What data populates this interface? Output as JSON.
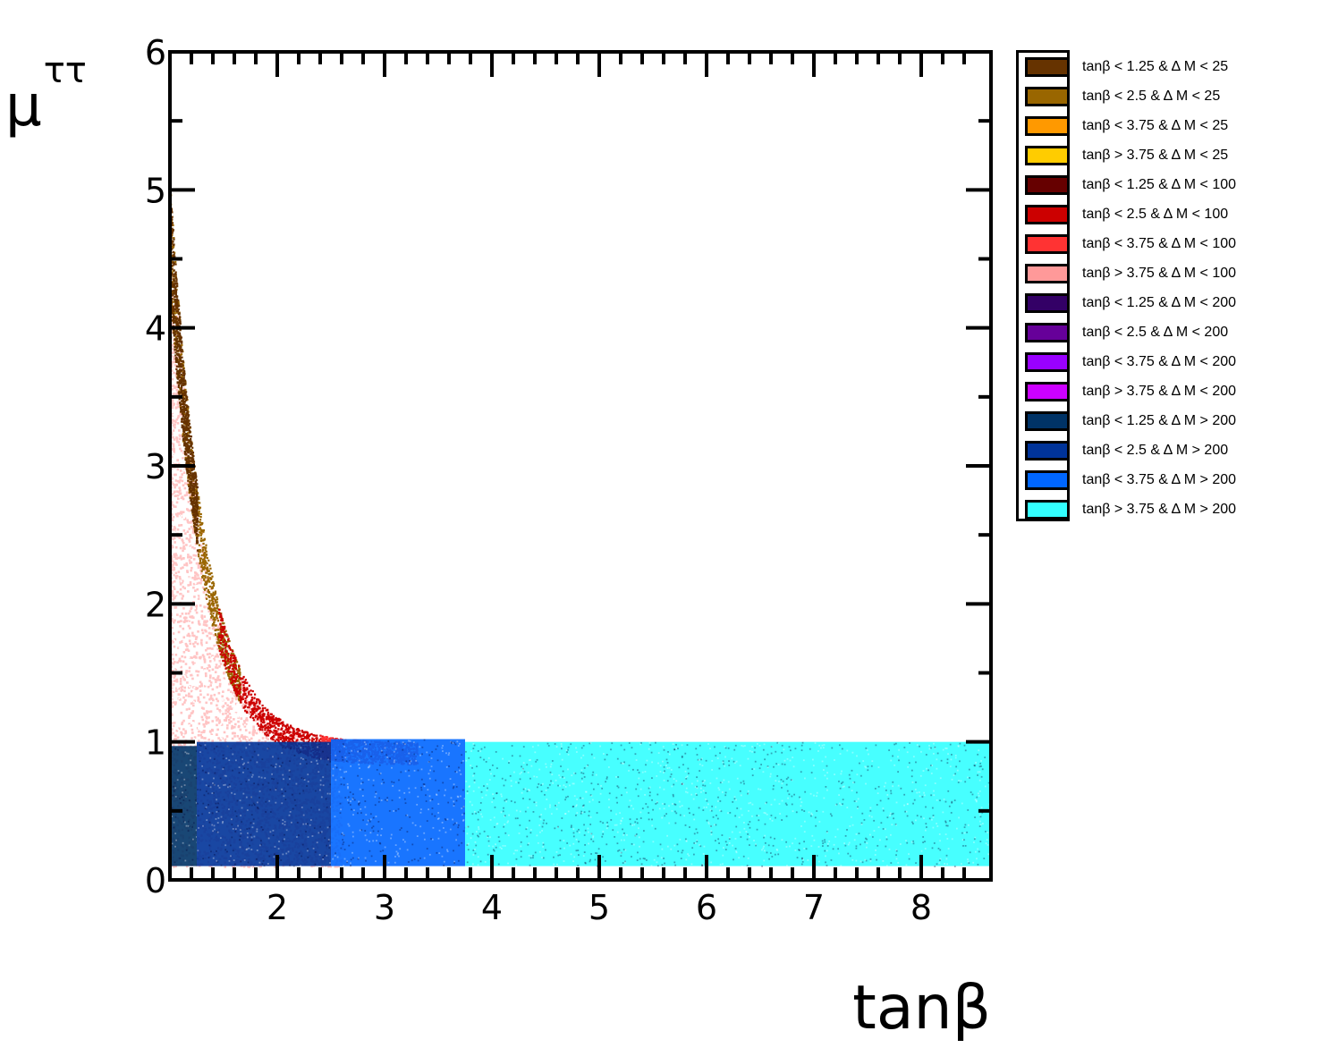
{
  "chart_data": {
    "type": "scatter",
    "title": "",
    "xlabel": "tanβ",
    "ylabel": "μ",
    "ylabel_subscript": "ττ",
    "xlim": [
      1.0,
      8.65
    ],
    "ylim": [
      0,
      6
    ],
    "x_ticks": [
      "2",
      "3",
      "4",
      "5",
      "6",
      "7",
      "8"
    ],
    "y_ticks": [
      "0",
      "1",
      "2",
      "3",
      "4",
      "5",
      "6"
    ],
    "legend_position": "right",
    "series": [
      {
        "name": "tanβ < 1.25 & Δ M < 25",
        "color": "#663300"
      },
      {
        "name": "tanβ < 2.5 & Δ M < 25",
        "color": "#996600"
      },
      {
        "name": "tanβ < 3.75 & Δ M < 25",
        "color": "#ff9900"
      },
      {
        "name": "tanβ > 3.75 & Δ M < 25",
        "color": "#ffcc00"
      },
      {
        "name": "tanβ < 1.25 & Δ M < 100",
        "color": "#660000"
      },
      {
        "name": "tanβ < 2.5 & Δ M < 100",
        "color": "#cc0000"
      },
      {
        "name": "tanβ < 3.75 & Δ M < 100",
        "color": "#ff3333"
      },
      {
        "name": "tanβ > 3.75 & Δ M < 100",
        "color": "#ff9999"
      },
      {
        "name": "tanβ < 1.25 & Δ M < 200",
        "color": "#330066"
      },
      {
        "name": "tanβ < 2.5 & Δ M < 200",
        "color": "#660099"
      },
      {
        "name": "tanβ < 3.75 & Δ M < 200",
        "color": "#9900ff"
      },
      {
        "name": "tanβ > 3.75 & Δ M < 200",
        "color": "#cc00ff"
      },
      {
        "name": "tanβ < 1.25 & Δ M > 200",
        "color": "#003366"
      },
      {
        "name": "tanβ < 2.5 & Δ M > 200",
        "color": "#003399"
      },
      {
        "name": "tanβ < 3.75 & Δ M > 200",
        "color": "#0066ff"
      },
      {
        "name": "tanβ > 3.75 & Δ M > 200",
        "color": "#33ffff"
      }
    ],
    "regions": [
      {
        "series": "tanβ > 3.75 & Δ M < 100",
        "shape": "under-curve",
        "x": [
          1.0,
          2.6
        ],
        "y": [
          0.1,
          4.4
        ],
        "color": "#ffc4c4"
      },
      {
        "series": "tanβ < 2.5 & Δ M < 25",
        "shape": "curve-band",
        "x": [
          1.0,
          1.65
        ],
        "color": "#996600"
      },
      {
        "series": "tanβ < 1.25 & Δ M < 25",
        "shape": "curve-band",
        "x": [
          1.0,
          1.25
        ],
        "color": "#663300"
      },
      {
        "series": "tanβ < 2.5 & Δ M < 100",
        "shape": "curve-band",
        "x": [
          1.45,
          2.6
        ],
        "color": "#cc0000"
      },
      {
        "series": "tanβ < 3.75 & Δ M < 100",
        "shape": "curve-band",
        "x": [
          2.4,
          3.3
        ],
        "color": "#ff3333"
      },
      {
        "series": "tanβ < 1.25 & Δ M > 200",
        "shape": "box",
        "x": [
          1.0,
          1.25
        ],
        "y": [
          0.1,
          0.97
        ],
        "color": "#003366"
      },
      {
        "series": "tanβ < 2.5 & Δ M > 200",
        "shape": "box",
        "x": [
          1.25,
          2.5
        ],
        "y": [
          0.1,
          1.0
        ],
        "color": "#003399"
      },
      {
        "series": "tanβ < 3.75 & Δ M > 200",
        "shape": "box",
        "x": [
          2.5,
          3.75
        ],
        "y": [
          0.1,
          1.02
        ],
        "color": "#0066ff"
      },
      {
        "series": "tanβ > 3.75 & Δ M > 200",
        "shape": "box",
        "x": [
          3.75,
          8.65
        ],
        "y": [
          0.1,
          1.0
        ],
        "color": "#33ffff"
      }
    ]
  }
}
